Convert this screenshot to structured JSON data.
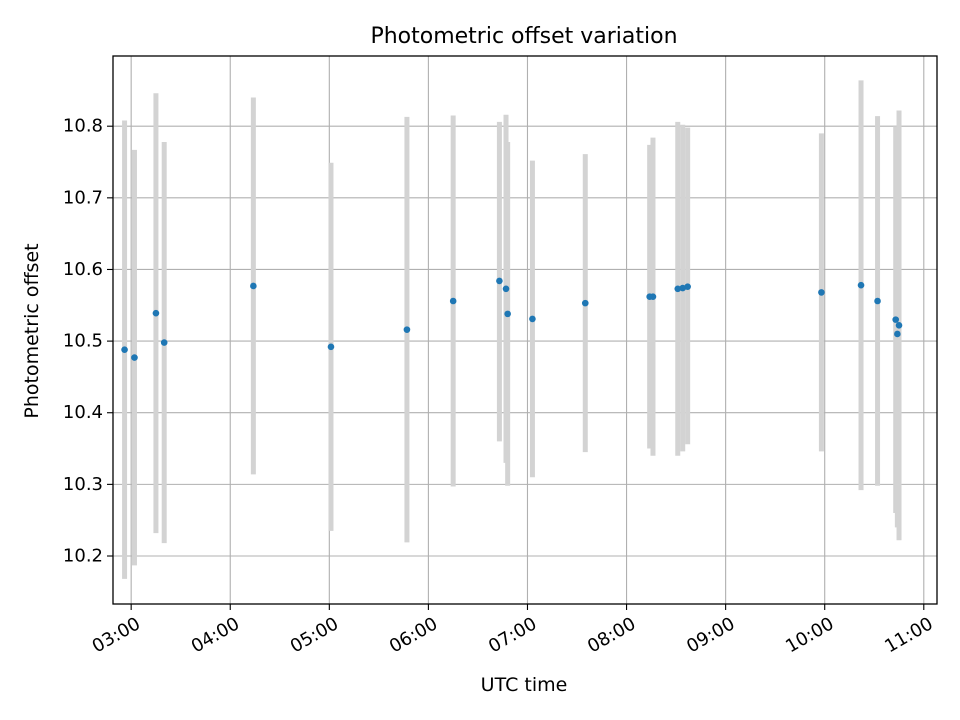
{
  "chart_data": {
    "type": "scatter",
    "title": "Photometric offset variation",
    "xlabel": "UTC time",
    "ylabel": "Photometric offset",
    "x_format": "HH:MM",
    "xlim": [
      "02:49",
      "11:08"
    ],
    "ylim": [
      10.133,
      10.898
    ],
    "grid": true,
    "x_ticks": [
      "03:00",
      "04:00",
      "05:00",
      "06:00",
      "07:00",
      "08:00",
      "09:00",
      "10:00",
      "11:00"
    ],
    "y_ticks": [
      10.2,
      10.3,
      10.4,
      10.5,
      10.6,
      10.7,
      10.8
    ],
    "y_tick_labels": [
      "10.2",
      "10.3",
      "10.4",
      "10.5",
      "10.6",
      "10.7",
      "10.8"
    ],
    "colors": {
      "points": "#1f77b4",
      "error_bars": "#d3d3d3",
      "grid": "#b0b0b0",
      "axes": "#000000"
    },
    "points": [
      {
        "x": "02:56",
        "y": 10.488,
        "ymin": 10.168,
        "ymax": 10.808
      },
      {
        "x": "03:02",
        "y": 10.477,
        "ymin": 10.187,
        "ymax": 10.767
      },
      {
        "x": "03:15",
        "y": 10.539,
        "ymin": 10.232,
        "ymax": 10.846
      },
      {
        "x": "03:20",
        "y": 10.498,
        "ymin": 10.218,
        "ymax": 10.778
      },
      {
        "x": "04:14",
        "y": 10.577,
        "ymin": 10.314,
        "ymax": 10.84
      },
      {
        "x": "05:01",
        "y": 10.492,
        "ymin": 10.235,
        "ymax": 10.749
      },
      {
        "x": "05:47",
        "y": 10.516,
        "ymin": 10.219,
        "ymax": 10.813
      },
      {
        "x": "06:15",
        "y": 10.556,
        "ymin": 10.297,
        "ymax": 10.815
      },
      {
        "x": "06:43",
        "y": 10.584,
        "ymin": 10.36,
        "ymax": 10.806
      },
      {
        "x": "06:47",
        "y": 10.573,
        "ymin": 10.33,
        "ymax": 10.816
      },
      {
        "x": "06:48",
        "y": 10.538,
        "ymin": 10.298,
        "ymax": 10.778
      },
      {
        "x": "07:03",
        "y": 10.531,
        "ymin": 10.31,
        "ymax": 10.752
      },
      {
        "x": "07:35",
        "y": 10.553,
        "ymin": 10.345,
        "ymax": 10.761
      },
      {
        "x": "08:14",
        "y": 10.562,
        "ymin": 10.35,
        "ymax": 10.774
      },
      {
        "x": "08:16",
        "y": 10.562,
        "ymin": 10.34,
        "ymax": 10.784
      },
      {
        "x": "08:31",
        "y": 10.573,
        "ymin": 10.34,
        "ymax": 10.806
      },
      {
        "x": "08:34",
        "y": 10.574,
        "ymin": 10.346,
        "ymax": 10.802
      },
      {
        "x": "08:37",
        "y": 10.576,
        "ymin": 10.356,
        "ymax": 10.798
      },
      {
        "x": "09:58",
        "y": 10.568,
        "ymin": 10.346,
        "ymax": 10.79
      },
      {
        "x": "10:22",
        "y": 10.578,
        "ymin": 10.292,
        "ymax": 10.864
      },
      {
        "x": "10:32",
        "y": 10.556,
        "ymin": 10.298,
        "ymax": 10.814
      },
      {
        "x": "10:43",
        "y": 10.53,
        "ymin": 10.26,
        "ymax": 10.8
      },
      {
        "x": "10:44",
        "y": 10.51,
        "ymin": 10.24,
        "ymax": 10.78
      },
      {
        "x": "10:45",
        "y": 10.522,
        "ymin": 10.222,
        "ymax": 10.822
      }
    ]
  }
}
